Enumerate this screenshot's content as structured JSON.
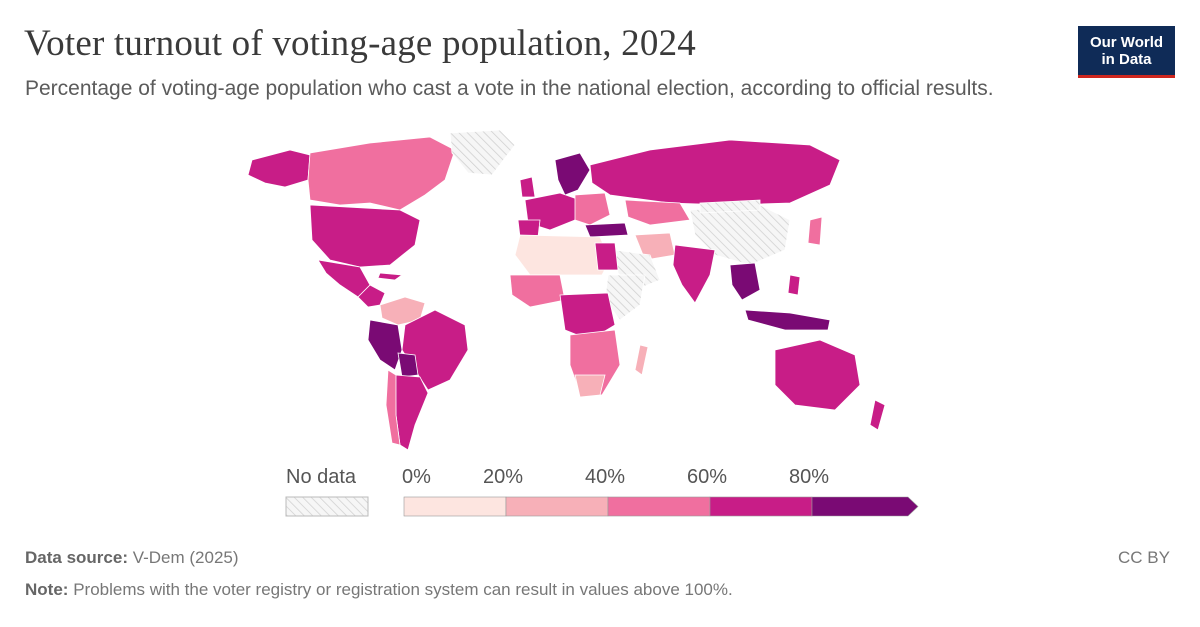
{
  "header": {
    "title": "Voter turnout of voting-age population, 2024",
    "subtitle": "Percentage of voting-age population who cast a vote in the national election, according to official results."
  },
  "logo": {
    "line1": "Our World",
    "line2": "in Data"
  },
  "legend": {
    "no_data_label": "No data",
    "ticks": [
      "0%",
      "20%",
      "40%",
      "60%",
      "80%"
    ],
    "bins": [
      {
        "from": 0,
        "to": 20,
        "color": "#fde5e0"
      },
      {
        "from": 20,
        "to": 40,
        "color": "#f7b0b8"
      },
      {
        "from": 40,
        "to": 60,
        "color": "#f06f9f"
      },
      {
        "from": 60,
        "to": 80,
        "color": "#c81d87"
      },
      {
        "from": 80,
        "to": null,
        "color": "#7a0a74"
      }
    ],
    "no_data_color": "#e8e8e8"
  },
  "footer": {
    "source_label": "Data source:",
    "source_value": "V-Dem (2025)",
    "note_label": "Note:",
    "note_value": "Problems with the voter registry or registration system can result in values above 100%.",
    "license": "CC BY"
  }
}
